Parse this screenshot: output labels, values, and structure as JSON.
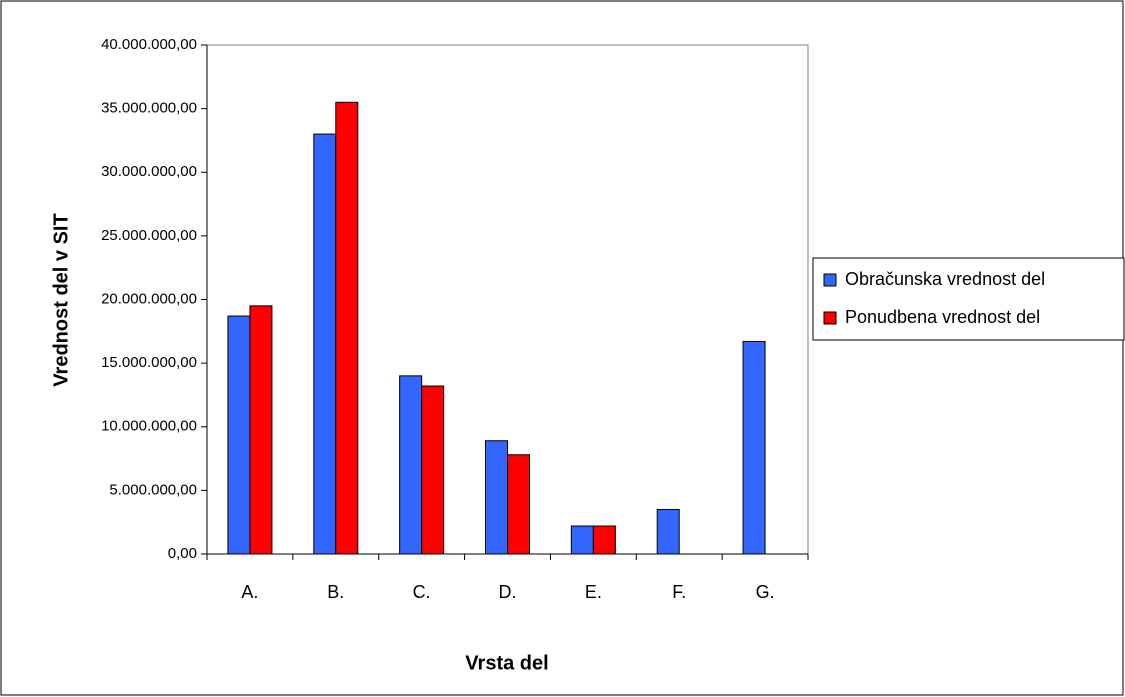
{
  "chart_data": {
    "type": "bar",
    "xlabel": "Vrsta del",
    "ylabel": "Vrednost del v SIT",
    "categories": [
      "A.",
      "B.",
      "C.",
      "D.",
      "E.",
      "F.",
      "G."
    ],
    "series": [
      {
        "name": "Obračunska vrednost del",
        "color": "#3366ff",
        "values": [
          18700000,
          33000000,
          14000000,
          8900000,
          2200000,
          3500000,
          16700000
        ]
      },
      {
        "name": "Ponudbena vrednost del",
        "color": "#ff0000",
        "values": [
          19500000,
          35500000,
          13200000,
          7800000,
          2200000,
          null,
          null
        ]
      }
    ],
    "ylim": [
      0,
      40000000
    ],
    "yticks": [
      {
        "value": 0,
        "label": "0,00"
      },
      {
        "value": 5000000,
        "label": "5.000.000,00"
      },
      {
        "value": 10000000,
        "label": "10.000.000,00"
      },
      {
        "value": 15000000,
        "label": "15.000.000,00"
      },
      {
        "value": 20000000,
        "label": "20.000.000,00"
      },
      {
        "value": 25000000,
        "label": "25.000.000,00"
      },
      {
        "value": 30000000,
        "label": "30.000.000,00"
      },
      {
        "value": 35000000,
        "label": "35.000.000,00"
      },
      {
        "value": 40000000,
        "label": "40.000.000,00"
      }
    ],
    "legend": "right"
  }
}
